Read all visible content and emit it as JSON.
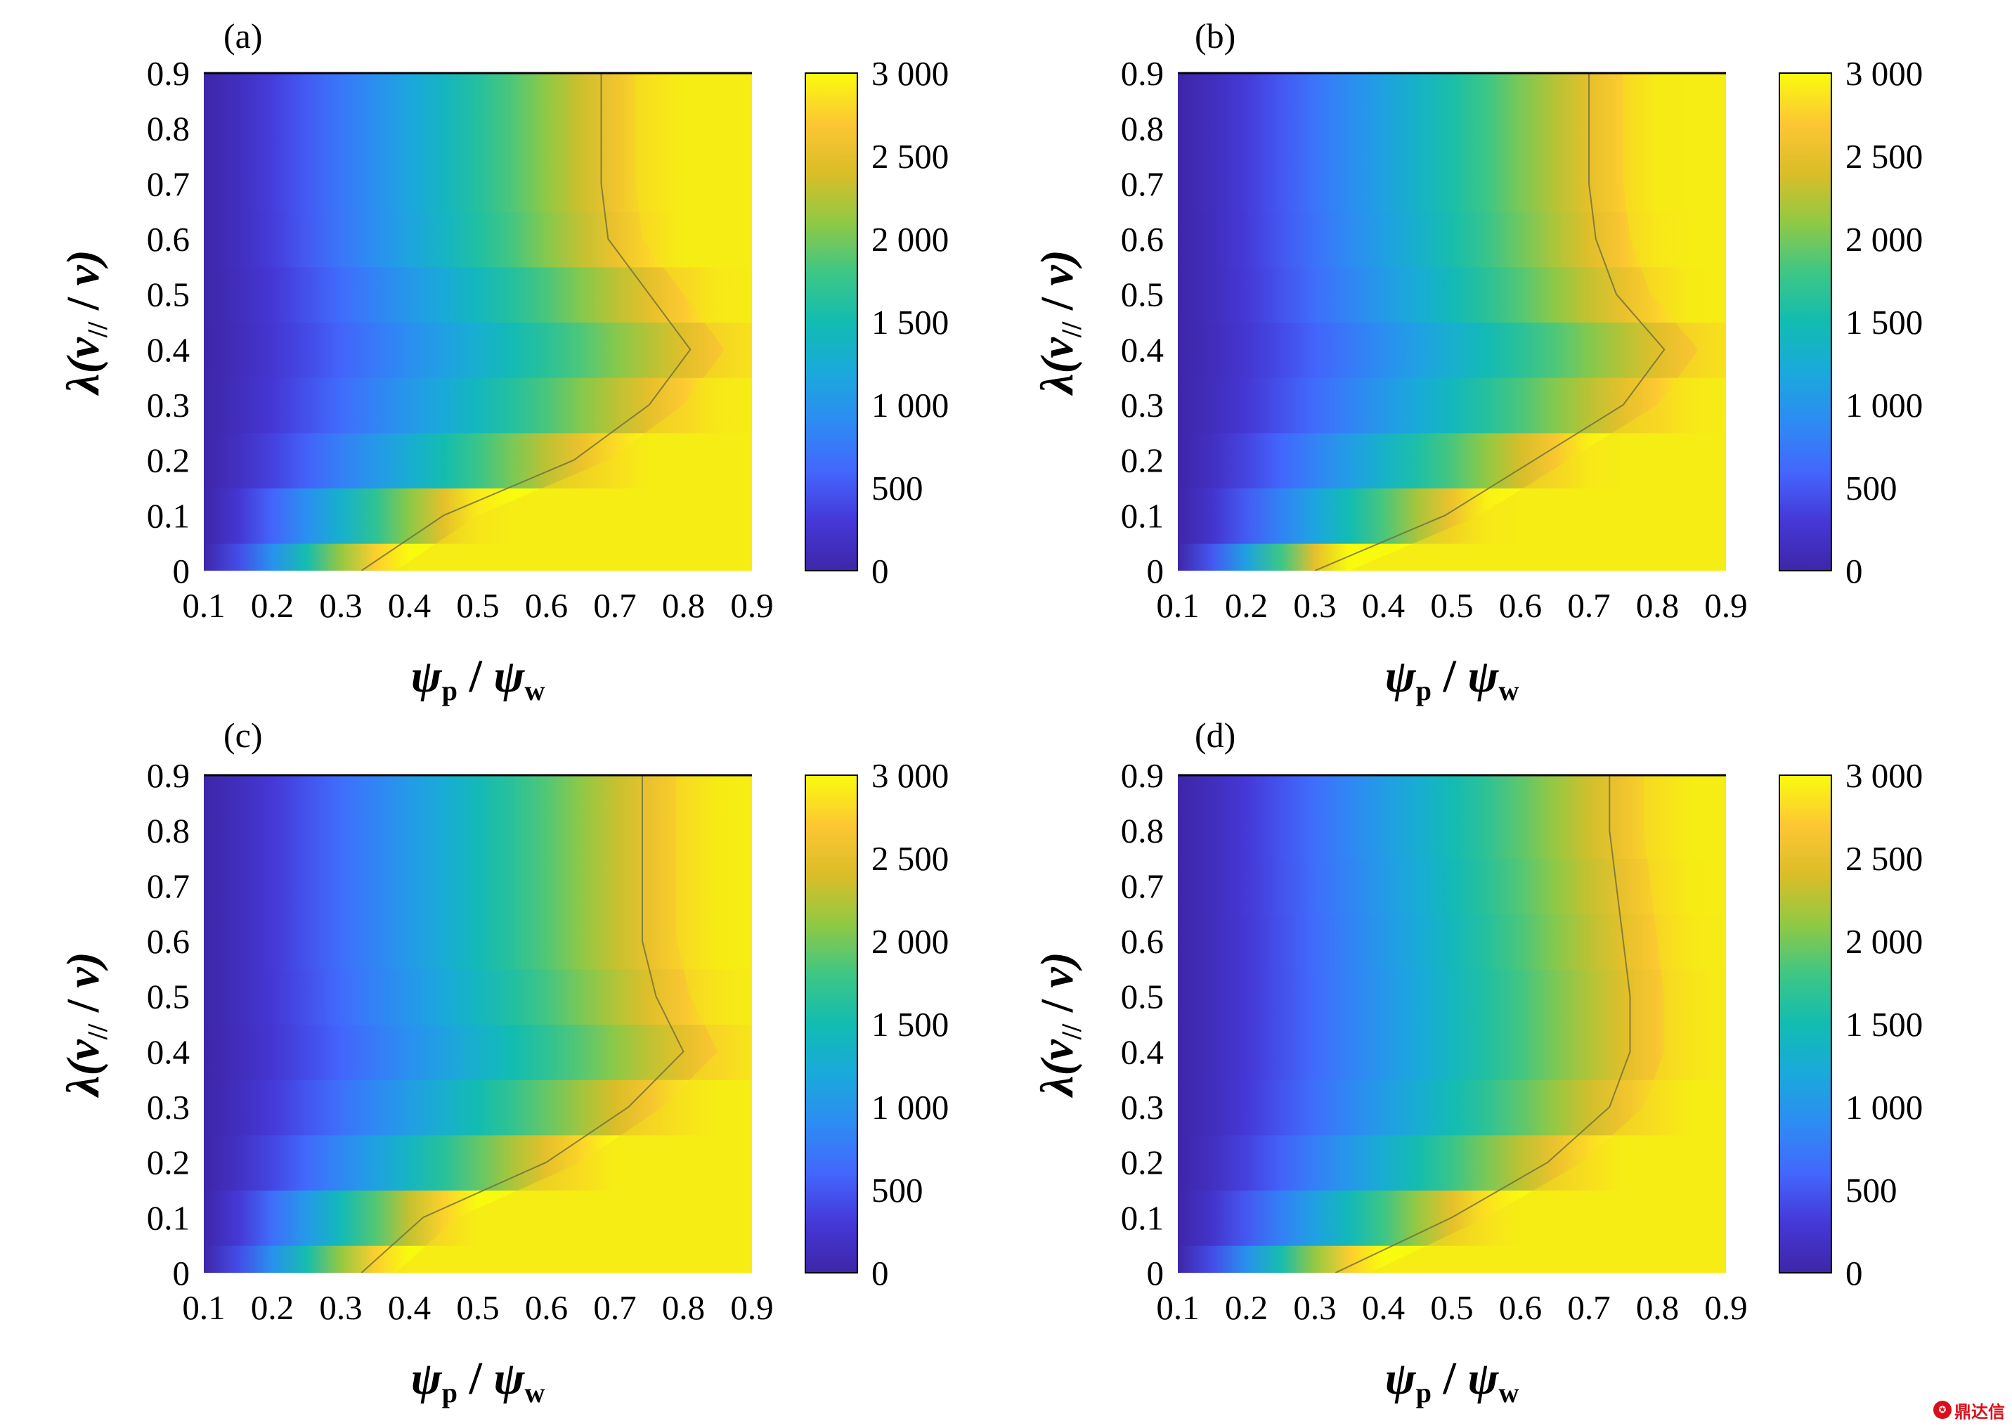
{
  "chart_data": [
    {
      "type": "heatmap",
      "panel_label": "(a)",
      "xlabel": "ψp / ψw",
      "ylabel": "λ(v// / v)",
      "x_ticks": [
        "0.1",
        "0.2",
        "0.3",
        "0.4",
        "0.5",
        "0.6",
        "0.7",
        "0.8",
        "0.9"
      ],
      "y_ticks": [
        "0",
        "0.1",
        "0.2",
        "0.3",
        "0.4",
        "0.5",
        "0.6",
        "0.7",
        "0.8",
        "0.9"
      ],
      "xlim": [
        0.1,
        0.9
      ],
      "ylim": [
        0,
        0.9
      ],
      "grid": false,
      "colormap": "parula",
      "colorbar": {
        "range": [
          0,
          3000
        ],
        "ticks": [
          "0",
          "500",
          "1 000",
          "1 500",
          "2 000",
          "2 500",
          "3 000"
        ]
      },
      "y_grid": [
        0,
        0.1,
        0.2,
        0.3,
        0.4,
        0.5,
        0.6,
        0.7,
        0.8,
        0.9
      ],
      "column_x": [
        0.1,
        0.2,
        0.3,
        0.4,
        0.5,
        0.6,
        0.7,
        0.8,
        0.9
      ],
      "contour_level": 2500,
      "contour_x_at_y": [
        0.33,
        0.45,
        0.64,
        0.75,
        0.81,
        0.75,
        0.69,
        0.68,
        0.68,
        0.68
      ]
    },
    {
      "type": "heatmap",
      "panel_label": "(b)",
      "xlabel": "ψp / ψw",
      "ylabel": "λ(v// / v)",
      "x_ticks": [
        "0.1",
        "0.2",
        "0.3",
        "0.4",
        "0.5",
        "0.6",
        "0.7",
        "0.8",
        "0.9"
      ],
      "y_ticks": [
        "0",
        "0.1",
        "0.2",
        "0.3",
        "0.4",
        "0.5",
        "0.6",
        "0.7",
        "0.8",
        "0.9"
      ],
      "xlim": [
        0.1,
        0.9
      ],
      "ylim": [
        0,
        0.9
      ],
      "grid": false,
      "colormap": "parula",
      "colorbar": {
        "range": [
          0,
          3000
        ],
        "ticks": [
          "0",
          "500",
          "1 000",
          "1 500",
          "2 000",
          "2 500",
          "3 000"
        ]
      },
      "y_grid": [
        0,
        0.1,
        0.2,
        0.3,
        0.4,
        0.5,
        0.6,
        0.7,
        0.8,
        0.9
      ],
      "column_x": [
        0.1,
        0.2,
        0.3,
        0.4,
        0.5,
        0.6,
        0.7,
        0.8,
        0.9
      ],
      "contour_level": 2500,
      "contour_x_at_y": [
        0.3,
        0.49,
        0.62,
        0.75,
        0.81,
        0.74,
        0.71,
        0.7,
        0.7,
        0.7
      ]
    },
    {
      "type": "heatmap",
      "panel_label": "(c)",
      "xlabel": "ψp / ψw",
      "ylabel": "λ(v// / v)",
      "x_ticks": [
        "0.1",
        "0.2",
        "0.3",
        "0.4",
        "0.5",
        "0.6",
        "0.7",
        "0.8",
        "0.9"
      ],
      "y_ticks": [
        "0",
        "0.1",
        "0.2",
        "0.3",
        "0.4",
        "0.5",
        "0.6",
        "0.7",
        "0.8",
        "0.9"
      ],
      "xlim": [
        0.1,
        0.9
      ],
      "ylim": [
        0,
        0.9
      ],
      "grid": false,
      "colormap": "parula",
      "colorbar": {
        "range": [
          0,
          3000
        ],
        "ticks": [
          "0",
          "500",
          "1 000",
          "1 500",
          "2 000",
          "2 500",
          "3 000"
        ]
      },
      "y_grid": [
        0,
        0.1,
        0.2,
        0.3,
        0.4,
        0.5,
        0.6,
        0.7,
        0.8,
        0.9
      ],
      "column_x": [
        0.1,
        0.2,
        0.3,
        0.4,
        0.5,
        0.6,
        0.7,
        0.8,
        0.9
      ],
      "contour_level": 2500,
      "contour_x_at_y": [
        0.33,
        0.42,
        0.6,
        0.72,
        0.8,
        0.76,
        0.74,
        0.74,
        0.74,
        0.74
      ]
    },
    {
      "type": "heatmap",
      "panel_label": "(d)",
      "xlabel": "ψp / ψw",
      "ylabel": "λ(v// / v)",
      "x_ticks": [
        "0.1",
        "0.2",
        "0.3",
        "0.4",
        "0.5",
        "0.6",
        "0.7",
        "0.8",
        "0.9"
      ],
      "y_ticks": [
        "0",
        "0.1",
        "0.2",
        "0.3",
        "0.4",
        "0.5",
        "0.6",
        "0.7",
        "0.8",
        "0.9"
      ],
      "xlim": [
        0.1,
        0.9
      ],
      "ylim": [
        0,
        0.9
      ],
      "grid": false,
      "colormap": "parula",
      "colorbar": {
        "range": [
          0,
          3000
        ],
        "ticks": [
          "0",
          "500",
          "1 000",
          "1 500",
          "2 000",
          "2 500",
          "3 000"
        ]
      },
      "y_grid": [
        0,
        0.1,
        0.2,
        0.3,
        0.4,
        0.5,
        0.6,
        0.7,
        0.8,
        0.9
      ],
      "column_x": [
        0.1,
        0.2,
        0.3,
        0.4,
        0.5,
        0.6,
        0.7,
        0.8,
        0.9
      ],
      "contour_level": 2500,
      "contour_x_at_y": [
        0.33,
        0.5,
        0.64,
        0.73,
        0.76,
        0.76,
        0.75,
        0.74,
        0.73,
        0.73
      ]
    }
  ],
  "watermark": {
    "text": "鼎达信",
    "icon": "logo-icon"
  }
}
